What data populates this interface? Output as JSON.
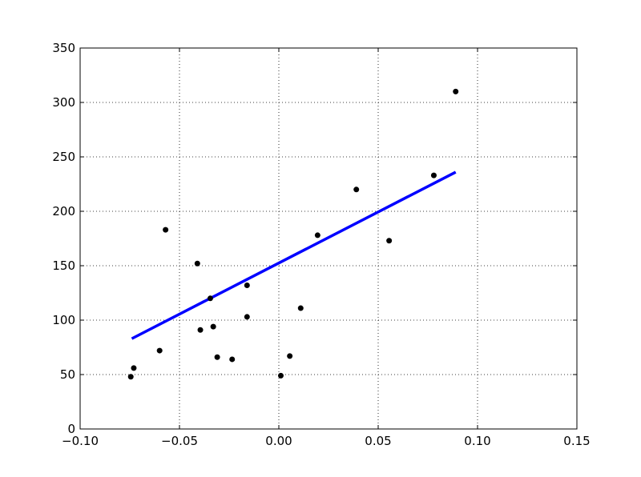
{
  "chart_data": {
    "type": "scatter",
    "title": "",
    "xlabel": "",
    "ylabel": "",
    "xlim": [
      -0.1,
      0.15
    ],
    "ylim": [
      0,
      350
    ],
    "grid": true,
    "x_ticks": [
      -0.1,
      -0.05,
      0.0,
      0.05,
      0.1,
      0.15
    ],
    "x_tick_labels": [
      "−0.10",
      "−0.05",
      "0.00",
      "0.05",
      "0.10",
      "0.15"
    ],
    "y_ticks": [
      0,
      50,
      100,
      150,
      200,
      250,
      300,
      350
    ],
    "y_tick_labels": [
      "0",
      "50",
      "100",
      "150",
      "200",
      "250",
      "300",
      "350"
    ],
    "series": [
      {
        "kind": "scatter",
        "color": "#000000",
        "points": [
          {
            "x": -0.0745,
            "y": 48
          },
          {
            "x": -0.073,
            "y": 56
          },
          {
            "x": -0.06,
            "y": 72
          },
          {
            "x": -0.057,
            "y": 183
          },
          {
            "x": -0.041,
            "y": 152
          },
          {
            "x": -0.0395,
            "y": 91
          },
          {
            "x": -0.0345,
            "y": 120
          },
          {
            "x": -0.033,
            "y": 94
          },
          {
            "x": -0.031,
            "y": 66
          },
          {
            "x": -0.0235,
            "y": 64
          },
          {
            "x": -0.016,
            "y": 132
          },
          {
            "x": -0.016,
            "y": 103
          },
          {
            "x": 0.001,
            "y": 49
          },
          {
            "x": 0.0055,
            "y": 67
          },
          {
            "x": 0.011,
            "y": 111
          },
          {
            "x": 0.0195,
            "y": 178
          },
          {
            "x": 0.039,
            "y": 220
          },
          {
            "x": 0.0555,
            "y": 173
          },
          {
            "x": 0.078,
            "y": 233
          },
          {
            "x": 0.089,
            "y": 310
          }
        ]
      },
      {
        "kind": "line",
        "color": "#0000ff",
        "points": [
          {
            "x": -0.074,
            "y": 83
          },
          {
            "x": 0.089,
            "y": 236
          }
        ]
      }
    ]
  }
}
